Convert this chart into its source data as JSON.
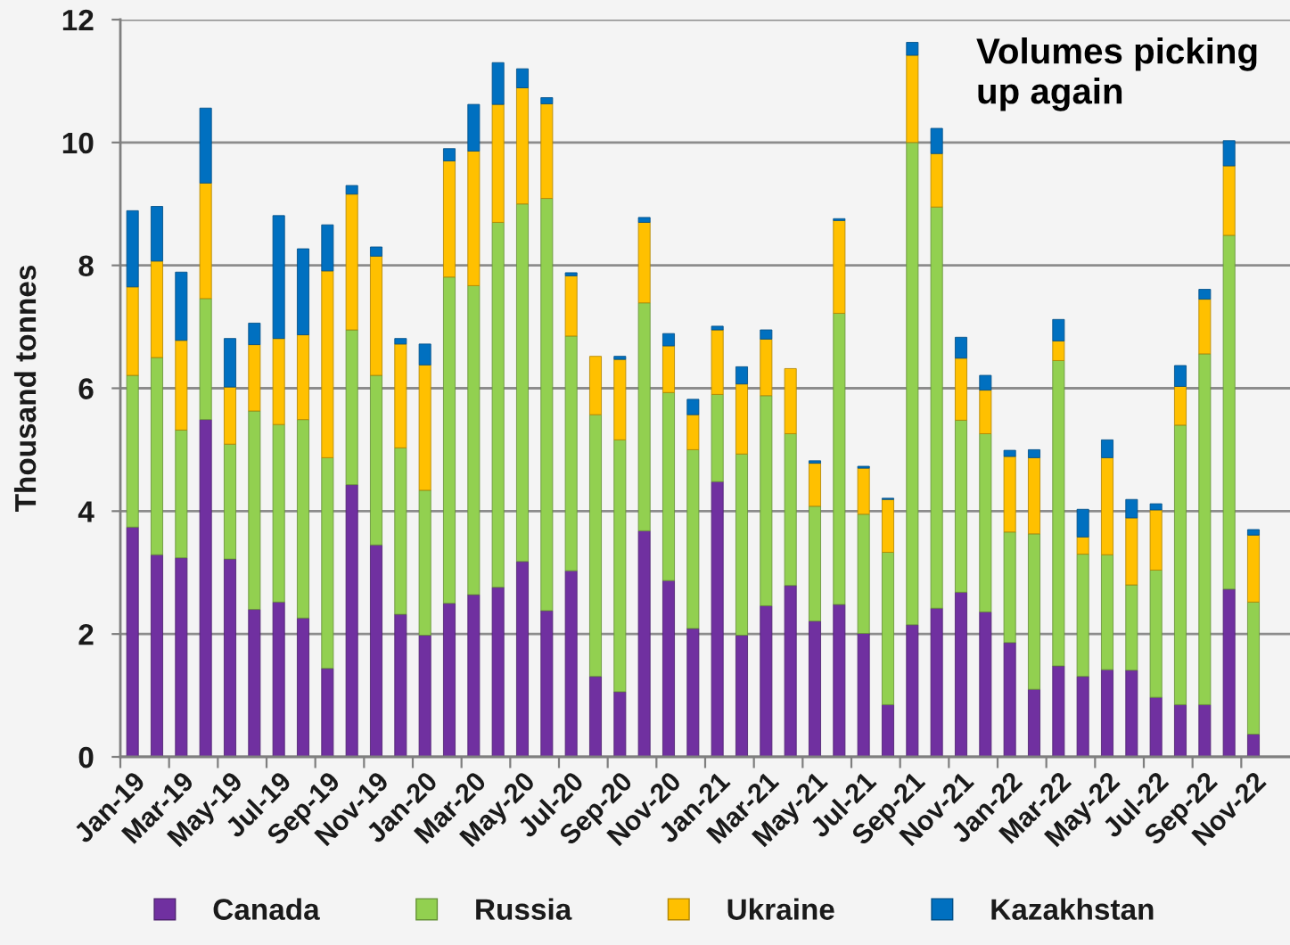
{
  "chart_data": {
    "type": "bar",
    "stacked": true,
    "annotations": [
      "Volumes picking up again"
    ],
    "ylabel": "Thousand tonnes",
    "categories": [
      "Jan-19",
      null,
      "Mar-19",
      null,
      "May-19",
      null,
      "Jul-19",
      null,
      "Sep-19",
      null,
      "Nov-19",
      null,
      "Jan-20",
      null,
      "Mar-20",
      null,
      "May-20",
      null,
      "Jul-20",
      null,
      "Sep-20",
      null,
      "Nov-20",
      null,
      "Jan-21",
      null,
      "Mar-21",
      null,
      "May-21",
      null,
      "Jul-21",
      null,
      "Sep-21",
      null,
      "Nov-21",
      null,
      "Jan-22",
      null,
      "Mar-22",
      null,
      "May-22",
      null,
      "Jul-22",
      null,
      "Sep-22",
      null,
      "Nov-22",
      null
    ],
    "series": [
      {
        "name": "Canada",
        "color": "#7030a0",
        "values": [
          3.74,
          3.29,
          3.24,
          5.49,
          3.22,
          2.4,
          2.52,
          2.26,
          1.44,
          4.43,
          3.45,
          2.32,
          1.98,
          2.5,
          2.64,
          2.76,
          3.18,
          2.38,
          3.03,
          1.31,
          1.06,
          3.68,
          2.87,
          2.09,
          4.48,
          1.98,
          2.46,
          2.79,
          2.21,
          2.48,
          2.01,
          0.85,
          2.15,
          2.42,
          2.68,
          2.36,
          1.86,
          1.1,
          1.48,
          1.31,
          1.42,
          1.41,
          0.97,
          0.85,
          0.85,
          2.73,
          0.37,
          null
        ]
      },
      {
        "name": "Russia",
        "color": "#92d050",
        "values": [
          2.47,
          3.21,
          2.08,
          1.97,
          1.87,
          3.23,
          2.89,
          3.23,
          3.43,
          2.52,
          2.76,
          2.71,
          2.36,
          5.31,
          5.03,
          5.94,
          5.82,
          6.71,
          3.82,
          4.26,
          4.1,
          3.71,
          3.06,
          2.91,
          1.42,
          2.95,
          3.42,
          2.47,
          1.87,
          4.74,
          1.94,
          2.48,
          7.85,
          6.53,
          2.8,
          2.9,
          1.8,
          2.53,
          4.97,
          1.99,
          1.87,
          1.39,
          2.07,
          4.55,
          5.71,
          5.76,
          2.15,
          null
        ]
      },
      {
        "name": "Ukraine",
        "color": "#ffc000",
        "values": [
          1.44,
          1.57,
          1.46,
          1.88,
          0.93,
          1.08,
          1.4,
          1.38,
          3.04,
          2.21,
          1.94,
          1.69,
          2.04,
          1.89,
          2.19,
          1.92,
          1.89,
          1.54,
          0.98,
          0.95,
          1.31,
          1.31,
          0.76,
          0.57,
          1.05,
          1.14,
          0.92,
          1.06,
          0.7,
          1.51,
          0.75,
          0.86,
          1.42,
          0.87,
          1.01,
          0.71,
          1.23,
          1.24,
          0.32,
          0.28,
          1.58,
          1.09,
          0.98,
          0.63,
          0.89,
          1.13,
          1.09,
          null
        ]
      },
      {
        "name": "Kazakhstan",
        "color": "#0070c0",
        "values": [
          1.24,
          0.89,
          1.11,
          1.22,
          0.79,
          0.35,
          2.0,
          1.4,
          0.75,
          0.14,
          0.15,
          0.09,
          0.34,
          0.2,
          0.76,
          0.68,
          0.31,
          0.1,
          0.05,
          null,
          0.05,
          0.08,
          0.2,
          0.25,
          0.06,
          0.28,
          0.15,
          null,
          0.04,
          0.03,
          0.03,
          0.02,
          0.21,
          0.41,
          0.34,
          0.24,
          0.1,
          0.13,
          0.35,
          0.45,
          0.29,
          0.3,
          0.1,
          0.34,
          0.16,
          0.41,
          0.09,
          null
        ]
      }
    ],
    "ylim": [
      0,
      12
    ],
    "yticks": [
      0,
      2,
      4,
      6,
      8,
      10,
      12
    ],
    "grid": "y",
    "legend": "bottom"
  }
}
